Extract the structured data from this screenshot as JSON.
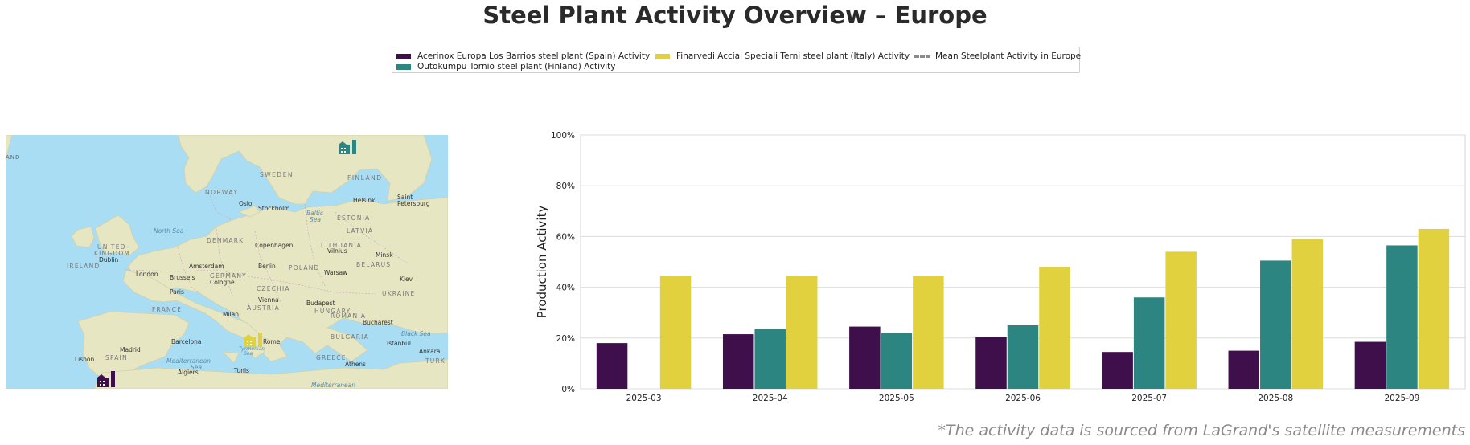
{
  "title": "Steel Plant Activity Overview – Europe",
  "source_note": "*The activity data is sourced from LaGrand's satellite measurements",
  "legend": {
    "items": [
      {
        "label": "Acerinox Europa Los Barrios steel plant (Spain) Activity",
        "color": "#3f0f4b"
      },
      {
        "label": "Outokumpu Tornio steel plant (Finland) Activity",
        "color": "#2c8580"
      },
      {
        "label": "Finarvedi Acciai Speciali Terni steel plant (Italy) Activity",
        "color": "#e2d13e"
      },
      {
        "label": "Mean Steelplant Activity in Europe",
        "color": "#8a8a8a"
      }
    ]
  },
  "map": {
    "labels": [
      "AND",
      "SWEDEN",
      "FINLAND",
      "NORWAY",
      "Oslo",
      "Stockholm",
      "Helsinki",
      "Saint",
      "Petersburg",
      "North Sea",
      "Baltic",
      "Sea",
      "ESTONIA",
      "LATVIA",
      "DENMARK",
      "Copenhagen",
      "LITHUANIA",
      "Vilnius",
      "Minsk",
      "UNITED",
      "KINGDOM",
      "Dublin",
      "IRELAND",
      "London",
      "Amsterdam",
      "Berlin",
      "POLAND",
      "Warsaw",
      "BELARUS",
      "Brussels",
      "GERMANY",
      "Cologne",
      "Kiev",
      "Paris",
      "CZECHIA",
      "Vienna",
      "UKRAINE",
      "FRANCE",
      "AUSTRIA",
      "Budapest",
      "HUNGARY",
      "Milan",
      "ROMANIA",
      "Bucharest",
      "Barcelona",
      "BULGARIA",
      "Black Sea",
      "Madrid",
      "Rome",
      "Istanbul",
      "Lisbon",
      "SPAIN",
      "Tyrrhenian",
      "Sea",
      "Mediterranean",
      "Sea",
      "GREECE",
      "Ankara",
      "Algiers",
      "Tunis",
      "Athens",
      "TURK",
      "Mediterranean"
    ],
    "markers": [
      {
        "name": "acerinox-los-barrios-marker",
        "color": "#3f0f4b"
      },
      {
        "name": "outokumpu-tornio-marker",
        "color": "#2c8580"
      },
      {
        "name": "arvedi-terni-marker",
        "color": "#e2d13e"
      }
    ]
  },
  "chart_data": {
    "type": "bar",
    "title": "",
    "xlabel": "",
    "ylabel": "Production Activity",
    "ylim": [
      0,
      100
    ],
    "yticks": [
      "0%",
      "20%",
      "40%",
      "60%",
      "80%",
      "100%"
    ],
    "grid": true,
    "categories": [
      "2025-03",
      "2025-04",
      "2025-05",
      "2025-06",
      "2025-07",
      "2025-08",
      "2025-09"
    ],
    "series": [
      {
        "name": "Acerinox Europa Los Barrios steel plant (Spain) Activity",
        "color": "#3f0f4b",
        "values": [
          18,
          21.5,
          24.5,
          20.5,
          14.5,
          15,
          18.5
        ]
      },
      {
        "name": "Outokumpu Tornio steel plant (Finland) Activity",
        "color": "#2c8580",
        "values": [
          null,
          23.5,
          22,
          25,
          36,
          50.5,
          56.5
        ]
      },
      {
        "name": "Finarvedi Acciai Speciali Terni steel plant (Italy) Activity",
        "color": "#e2d13e",
        "values": [
          44.5,
          44.5,
          44.5,
          48,
          54,
          59,
          63
        ]
      }
    ]
  }
}
